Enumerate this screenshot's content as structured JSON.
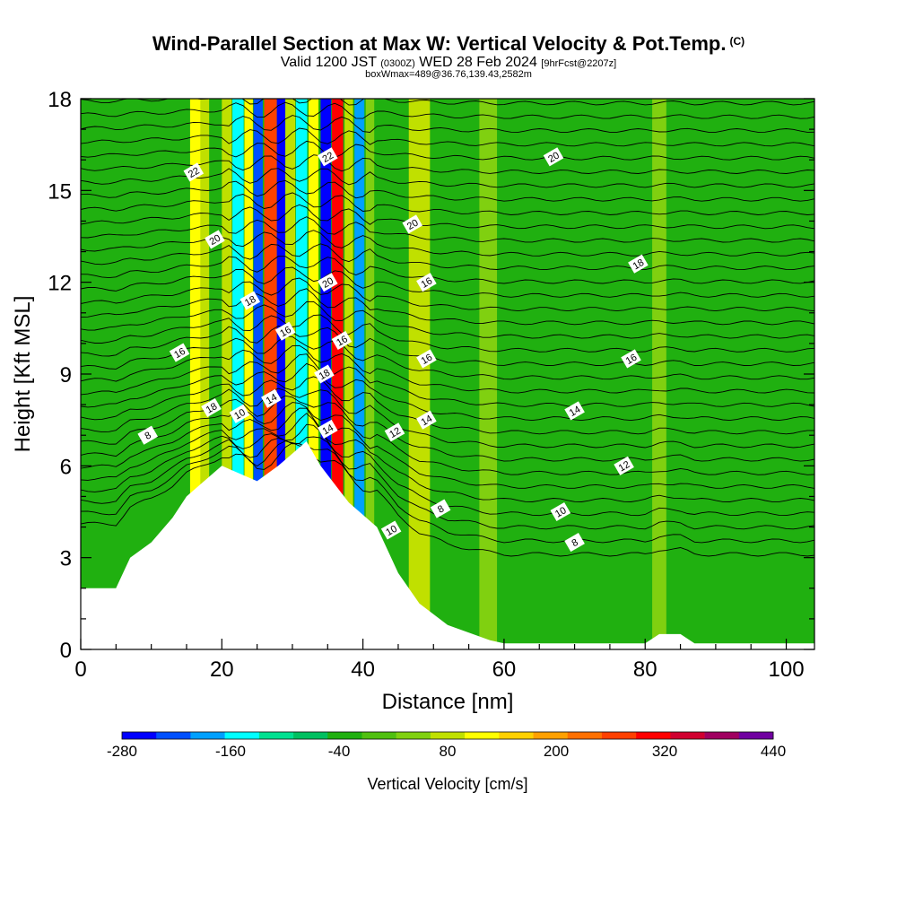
{
  "header": {
    "title": "Wind-Parallel Section at Max W: Vertical Velocity & Pot.Temp.",
    "title_unit": "(C)",
    "valid_prefix": "Valid 1200 JST",
    "valid_utc": "(0300Z)",
    "valid_date": "WED 28 Feb 2024",
    "forecast": "[9hrFcst@2207z]",
    "box_info": "boxWmax=489@36.76,139.43,2582m"
  },
  "chart_data": {
    "type": "heatmap",
    "xlabel": "Distance [nm]",
    "ylabel": "Height [Kft MSL]",
    "xlim": [
      0,
      104
    ],
    "ylim": [
      0,
      18
    ],
    "x_ticks": [
      0,
      20,
      40,
      60,
      80,
      100
    ],
    "y_ticks": [
      0,
      3,
      6,
      9,
      12,
      15,
      18
    ],
    "colorbar": {
      "label": "Vertical Velocity [cm/s]",
      "min": -280,
      "max": 440,
      "step": 40,
      "tick_labels": [
        "-280",
        "-160",
        "-40",
        "80",
        "200",
        "320",
        "440"
      ],
      "colors": [
        "#0000ff",
        "#0050ff",
        "#00a0ff",
        "#00ffff",
        "#00e090",
        "#00c060",
        "#20b010",
        "#50c010",
        "#80d010",
        "#c0e000",
        "#ffff00",
        "#ffd000",
        "#ffa000",
        "#ff7000",
        "#ff4000",
        "#ff0000",
        "#d00030",
        "#a00060",
        "#7000a0"
      ]
    },
    "terrain_kft": [
      [
        0,
        2
      ],
      [
        5,
        2
      ],
      [
        7,
        3
      ],
      [
        10,
        3.5
      ],
      [
        13,
        4.3
      ],
      [
        15,
        5
      ],
      [
        20,
        6
      ],
      [
        25,
        5.5
      ],
      [
        28,
        6
      ],
      [
        32,
        6.8
      ],
      [
        34,
        6
      ],
      [
        38,
        4.8
      ],
      [
        42,
        4
      ],
      [
        45,
        2.5
      ],
      [
        48,
        1.5
      ],
      [
        52,
        0.8
      ],
      [
        58,
        0.3
      ],
      [
        60,
        0.2
      ],
      [
        80,
        0.2
      ],
      [
        82,
        0.5
      ],
      [
        85,
        0.5
      ],
      [
        87,
        0.2
      ],
      [
        104,
        0.2
      ]
    ],
    "vertical_velocity_cells": [
      {
        "x": 15.5,
        "w": 1.5,
        "v": 120
      },
      {
        "x": 17,
        "w": 1.2,
        "v": 90
      },
      {
        "x": 20,
        "w": 1.4,
        "v": 80
      },
      {
        "x": 21.5,
        "w": 1.6,
        "v": -160
      },
      {
        "x": 23.2,
        "w": 1.2,
        "v": 120
      },
      {
        "x": 24.5,
        "w": 1.3,
        "v": -240
      },
      {
        "x": 26,
        "w": 1.8,
        "v": 300
      },
      {
        "x": 27.8,
        "w": 1.2,
        "v": -280
      },
      {
        "x": 29,
        "w": 1.4,
        "v": 80
      },
      {
        "x": 30.5,
        "w": 1.6,
        "v": -160
      },
      {
        "x": 32.3,
        "w": 1.4,
        "v": 140
      },
      {
        "x": 34,
        "w": 1.5,
        "v": -280
      },
      {
        "x": 35.6,
        "w": 1.6,
        "v": 340
      },
      {
        "x": 37.4,
        "w": 1.2,
        "v": 100
      },
      {
        "x": 38.8,
        "w": 1.4,
        "v": -200
      },
      {
        "x": 40.4,
        "w": 1.2,
        "v": 60
      },
      {
        "x": 46.5,
        "w": 3,
        "v": 90
      },
      {
        "x": 56.5,
        "w": 2.5,
        "v": 50
      },
      {
        "x": 81,
        "w": 2,
        "v": 40
      }
    ],
    "contour_labels": [
      {
        "text": "22",
        "x": 16,
        "y": 15.6
      },
      {
        "text": "20",
        "x": 19,
        "y": 13.4
      },
      {
        "text": "18",
        "x": 24,
        "y": 11.4
      },
      {
        "text": "16",
        "x": 14,
        "y": 9.7
      },
      {
        "text": "18",
        "x": 18.5,
        "y": 7.9
      },
      {
        "text": "10",
        "x": 22.5,
        "y": 7.7
      },
      {
        "text": "14",
        "x": 27,
        "y": 8.2
      },
      {
        "text": "16",
        "x": 29,
        "y": 10.4
      },
      {
        "text": "8",
        "x": 9.5,
        "y": 7.0
      },
      {
        "text": "22",
        "x": 35,
        "y": 16.1
      },
      {
        "text": "20",
        "x": 35,
        "y": 12.0
      },
      {
        "text": "18",
        "x": 34.5,
        "y": 9.0
      },
      {
        "text": "16",
        "x": 37,
        "y": 10.1
      },
      {
        "text": "14",
        "x": 35,
        "y": 7.2
      },
      {
        "text": "20",
        "x": 47,
        "y": 13.9
      },
      {
        "text": "16",
        "x": 49,
        "y": 12.0
      },
      {
        "text": "16",
        "x": 49,
        "y": 9.5
      },
      {
        "text": "14",
        "x": 49,
        "y": 7.5
      },
      {
        "text": "12",
        "x": 44.5,
        "y": 7.1
      },
      {
        "text": "10",
        "x": 44,
        "y": 3.9
      },
      {
        "text": "8",
        "x": 51,
        "y": 4.6
      },
      {
        "text": "20",
        "x": 67,
        "y": 16.1
      },
      {
        "text": "18",
        "x": 79,
        "y": 12.6
      },
      {
        "text": "16",
        "x": 78,
        "y": 9.5
      },
      {
        "text": "14",
        "x": 70,
        "y": 7.8
      },
      {
        "text": "12",
        "x": 77,
        "y": 6.0
      },
      {
        "text": "10",
        "x": 68,
        "y": 4.5
      },
      {
        "text": "8",
        "x": 70,
        "y": 3.5
      }
    ]
  }
}
